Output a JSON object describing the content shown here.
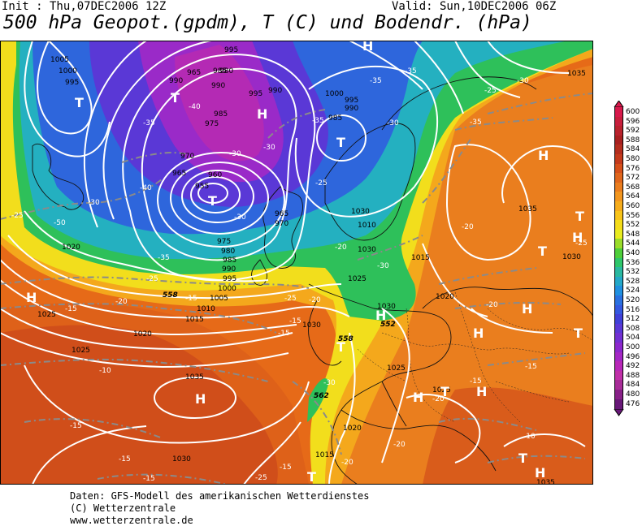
{
  "header": {
    "init": "Init : Thu,07DEC2006 12Z",
    "valid": "Valid: Sun,10DEC2006 06Z",
    "title": "500 hPa Geopot.(gpdm), T (C) und Bodendr. (hPa)"
  },
  "footer": {
    "line1": "Daten: GFS-Modell des amerikanischen Wetterdienstes",
    "line2": "(C) Wetterzentrale",
    "line3": "www.wetterzentrale.de"
  },
  "legend": {
    "labels": [
      "600",
      "596",
      "592",
      "588",
      "584",
      "580",
      "576",
      "572",
      "568",
      "564",
      "560",
      "556",
      "552",
      "548",
      "544",
      "540",
      "536",
      "532",
      "528",
      "524",
      "520",
      "516",
      "512",
      "508",
      "504",
      "500",
      "496",
      "492",
      "488",
      "484",
      "480",
      "476"
    ],
    "colors": [
      "#d7194b",
      "#c81e3c",
      "#b9222d",
      "#a82020",
      "#b42d1e",
      "#c43a1c",
      "#d6501a",
      "#e0661c",
      "#ea7d1e",
      "#f2961f",
      "#f5ac1c",
      "#f8c41a",
      "#f4dc1a",
      "#e8ec20",
      "#9adc2a",
      "#4ece3a",
      "#2ec66a",
      "#2ab8a0",
      "#24a8c8",
      "#2090e0",
      "#2a70e0",
      "#3458e0",
      "#4040d8",
      "#5a38d6",
      "#7230d2",
      "#8c28cc",
      "#a428c4",
      "#b828b8",
      "#c030a8",
      "#a82c98",
      "#882088",
      "#681878"
    ]
  },
  "map": {
    "pressure_labels": [
      "995",
      "985",
      "990",
      "965",
      "980",
      "1005",
      "1000",
      "995",
      "990",
      "975",
      "970",
      "965",
      "960",
      "955",
      "990",
      "995",
      "985",
      "1000",
      "995",
      "990",
      "985",
      "965",
      "970",
      "975",
      "980",
      "985",
      "990",
      "995",
      "1000",
      "1005",
      "1010",
      "1010",
      "1015",
      "1020",
      "1020",
      "1025",
      "1025",
      "1035",
      "1030",
      "1030",
      "1035",
      "1015",
      "1020",
      "1025",
      "1030",
      "1025",
      "1030",
      "1020",
      "1015",
      "1035",
      "1030",
      "1025",
      "1035",
      "1030"
    ],
    "temp_labels": [
      "-35",
      "-35",
      "-25",
      "-30",
      "-40",
      "-35",
      "-35",
      "-30",
      "-30",
      "-30",
      "-40",
      "-30",
      "-35",
      "-50",
      "-25",
      "-30",
      "-30",
      "-25",
      "-20",
      "-25",
      "-35",
      "-20",
      "-25",
      "-15",
      "-15",
      "-15",
      "-10",
      "-15",
      "-15",
      "-15",
      "-20",
      "-15",
      "-20",
      "-15",
      "-20",
      "-10",
      "-30",
      "-20",
      "-15",
      "-20",
      "-15",
      "-25",
      "-20",
      "-25"
    ],
    "height_labels": [
      "558",
      "558",
      "562",
      "552"
    ],
    "highs": [
      "H",
      "H",
      "H",
      "H",
      "H",
      "H",
      "H",
      "H",
      "H",
      "H",
      "H",
      "H"
    ],
    "lows": [
      "T",
      "T",
      "T",
      "T",
      "T",
      "T",
      "T",
      "T",
      "T",
      "T",
      "T"
    ]
  }
}
